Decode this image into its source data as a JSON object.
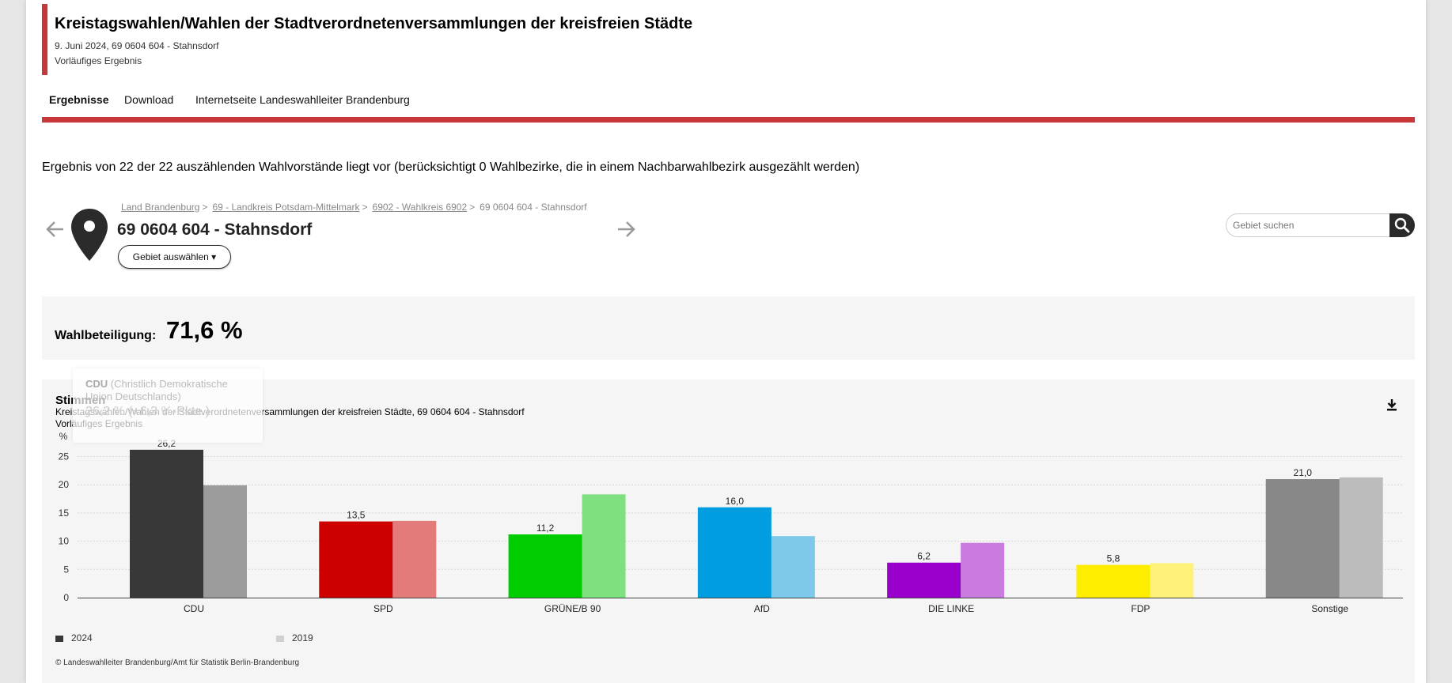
{
  "header": {
    "title": "Kreistagswahlen/Wahlen der Stadtverordnetenversammlungen der kreisfreien Städte",
    "subtitle_line1": "9. Juni 2024, 69 0604 604 - Stahnsdorf",
    "subtitle_line2": "Vorläufiges Ergebnis"
  },
  "nav": {
    "tabs": [
      {
        "label": "Ergebnisse"
      },
      {
        "label": "Download"
      },
      {
        "label": "Internetseite Landeswahlleiter Brandenburg"
      }
    ]
  },
  "status_text": "Ergebnis von 22 der 22 auszählenden Wahlvorstände liegt vor (berücksichtigt 0 Wahlbezirke, die in einem Nachbarwahlbezirk ausgezählt werden)",
  "breadcrumb": {
    "items": [
      {
        "label": "Land Brandenburg"
      },
      {
        "label": "69 - Landkreis Potsdam-Mittelmark"
      },
      {
        "label": "6902 - Wahlkreis 6902"
      }
    ],
    "current": "69 0604 604 - Stahnsdorf",
    "separator": ">"
  },
  "area": {
    "title": "69 0604 604 - Stahnsdorf",
    "select_label": "Gebiet auswählen ▾"
  },
  "search": {
    "placeholder": "Gebiet suchen"
  },
  "turnout": {
    "label": "Wahlbeteiligung:",
    "value": "71,6 %"
  },
  "tooltip": {
    "party": "CDU",
    "party_full": "(Christlich Demokratische",
    "party_full2": "Union Deutschlands)",
    "value": "26,2 % (+6,3 %-Pkte.)"
  },
  "colors": {
    "accent": "#c8373a",
    "page_bg": "#e6e6e6",
    "panel_bg": "#f5f5f5"
  },
  "chart_data": {
    "type": "bar",
    "title": "Stimmen",
    "subtitle": "Kreistagswahlen/Wahlen der Stadtverordnetenversammlungen der kreisfreien Städte, 69 0604 604 - Stahnsdorf",
    "subtitle2": "Vorläufiges Ergebnis",
    "ylabel": "%",
    "ylim": [
      0,
      25
    ],
    "yticks": [
      0,
      5,
      10,
      15,
      20,
      25
    ],
    "grid": true,
    "categories": [
      "CDU",
      "SPD",
      "GRÜNE/B 90",
      "AfD",
      "DIE LINKE",
      "FDP",
      "Sonstige"
    ],
    "series": [
      {
        "name": "2024",
        "values": [
          26.2,
          13.5,
          11.2,
          16.0,
          6.2,
          5.8,
          21.0
        ],
        "labels": [
          "26,2",
          "13,5",
          "11,2",
          "16,0",
          "6,2",
          "5,8",
          "21,0"
        ],
        "colors": [
          "#383838",
          "#cc0000",
          "#00cc00",
          "#009ee0",
          "#9900cc",
          "#ffed00",
          "#888888"
        ]
      },
      {
        "name": "2019",
        "values": [
          19.9,
          13.6,
          18.3,
          10.9,
          9.7,
          6.1,
          21.3
        ],
        "colors": [
          "#9c9c9c",
          "#e37b7b",
          "#7fe07f",
          "#7ec9ea",
          "#c97be0",
          "#fff27a",
          "#bcbcbc"
        ]
      }
    ],
    "legend": [
      {
        "label": "2024",
        "color": "#383838"
      },
      {
        "label": "2019",
        "color": "#d0d0d0"
      }
    ],
    "legend_position": "bottom-left",
    "copyright": "© Landeswahlleiter Brandenburg/Amt für Statistik Berlin-Brandenburg"
  }
}
